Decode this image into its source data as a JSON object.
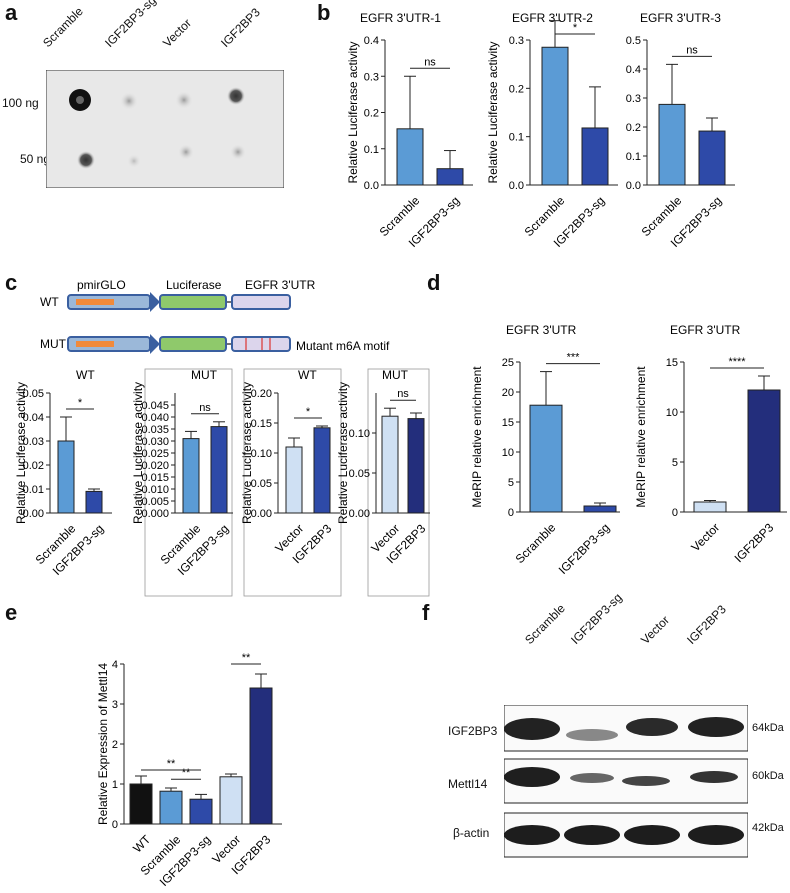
{
  "panels": {
    "a": "a",
    "b": "b",
    "c": "c",
    "d": "d",
    "e": "e",
    "f": "f"
  },
  "panel_a": {
    "lanes": [
      "Scramble",
      "IGF2BP3-sg",
      "Vector",
      "IGF2BP3"
    ],
    "rows": [
      "100 ng",
      "50 ng"
    ]
  },
  "panel_c": {
    "constructs": {
      "wt_label": "WT",
      "mut_label": "MUT",
      "pmirglo": "pmirGLO",
      "luciferase": "Luciferase",
      "egfr_utr": "EGFR  3'UTR",
      "mutant_motif": "Mutant m6A motif"
    }
  },
  "panel_f": {
    "lanes": [
      "Scramble",
      "IGF2BP3-sg",
      "Vector",
      "IGF2BP3"
    ],
    "rows": [
      {
        "name": "IGF2BP3",
        "size": "64kDa"
      },
      {
        "name": "Mettl14",
        "size": "60kDa"
      },
      {
        "name": "β-actin",
        "size": "42kDa"
      }
    ]
  },
  "colors": {
    "blue_light": "#5b9bd5",
    "blue_dark": "#2e4aa8",
    "pale_blue": "#cfe0f3",
    "navy": "#232e7c",
    "black": "#111111"
  },
  "chart_data": [
    {
      "id": "b1",
      "type": "bar",
      "title": "EGFR 3'UTR-1",
      "ylabel": "Relative Luciferase activity",
      "categories": [
        "Scramble",
        "IGF2BP3-sg"
      ],
      "values": [
        0.155,
        0.045
      ],
      "errors": [
        0.145,
        0.05
      ],
      "ylim": [
        0,
        0.4
      ],
      "ticks": [
        "0.0",
        "0.1",
        "0.2",
        "0.3",
        "0.4"
      ],
      "sig": "ns"
    },
    {
      "id": "b2",
      "type": "bar",
      "title": "EGFR 3'UTR-2",
      "ylabel": "Relative Luciferase activity",
      "categories": [
        "Scramble",
        "IGF2BP3-sg"
      ],
      "values": [
        0.285,
        0.118
      ],
      "errors": [
        0.055,
        0.085
      ],
      "ylim": [
        0,
        0.3
      ],
      "ticks": [
        "0.0",
        "0.1",
        "0.2",
        "0.3"
      ],
      "sig": "*"
    },
    {
      "id": "b3",
      "type": "bar",
      "title": "EGFR 3'UTR-3",
      "ylabel": "",
      "categories": [
        "Scramble",
        "IGF2BP3-sg"
      ],
      "values": [
        0.278,
        0.186
      ],
      "errors": [
        0.138,
        0.045
      ],
      "ylim": [
        0,
        0.5
      ],
      "ticks": [
        "0.0",
        "0.1",
        "0.2",
        "0.3",
        "0.4",
        "0.5"
      ],
      "sig": "ns"
    },
    {
      "id": "c1",
      "type": "bar",
      "title": "WT",
      "ylabel": "Relative Luciferase activity",
      "categories": [
        "Scramble",
        "IGF2BP3-sg"
      ],
      "values": [
        0.03,
        0.009
      ],
      "errors": [
        0.01,
        0.001
      ],
      "ylim": [
        0,
        0.05
      ],
      "ticks": [
        "0.00",
        "0.01",
        "0.02",
        "0.03",
        "0.04",
        "0.05"
      ],
      "sig": "*"
    },
    {
      "id": "c2",
      "type": "bar",
      "title": "MUT",
      "ylabel": "Relative Luciferase activity",
      "categories": [
        "Scramble",
        "IGF2BP3-sg"
      ],
      "values": [
        0.031,
        0.036
      ],
      "errors": [
        0.003,
        0.002
      ],
      "ylim": [
        0,
        0.05
      ],
      "ticks": [
        "0.000",
        "0.005",
        "0.010",
        "0.015",
        "0.020",
        "0.025",
        "0.030",
        "0.035",
        "0.040",
        "0.045"
      ],
      "sig": "ns"
    },
    {
      "id": "c3",
      "type": "bar",
      "title": "WT",
      "ylabel": "Relative Luciferase activity",
      "categories": [
        "Vector",
        "IGF2BP3"
      ],
      "values": [
        0.11,
        0.142
      ],
      "errors": [
        0.015,
        0.003
      ],
      "ylim": [
        0,
        0.2
      ],
      "ticks": [
        "0.00",
        "0.05",
        "0.10",
        "0.15",
        "0.20"
      ],
      "sig": "*"
    },
    {
      "id": "c4",
      "type": "bar",
      "title": "MUT",
      "ylabel": "Relative Luciferase activity",
      "categories": [
        "Vector",
        "IGF2BP3"
      ],
      "values": [
        0.121,
        0.118
      ],
      "errors": [
        0.01,
        0.007
      ],
      "ylim": [
        0,
        0.15
      ],
      "ticks": [
        "0.00",
        "0.05",
        "0.10"
      ],
      "sig": "ns"
    },
    {
      "id": "d1",
      "type": "bar",
      "title": "EGFR  3'UTR",
      "ylabel": "MeRIP relative enrichment",
      "categories": [
        "Scramble",
        "IGF2BP3-sg"
      ],
      "values": [
        17.8,
        1.0
      ],
      "errors": [
        5.6,
        0.5
      ],
      "ylim": [
        0,
        25
      ],
      "ticks": [
        "0",
        "5",
        "10",
        "15",
        "20",
        "25"
      ],
      "sig": "***"
    },
    {
      "id": "d2",
      "type": "bar",
      "title": "EGFR  3'UTR",
      "ylabel": "MeRIP relative enrichment",
      "categories": [
        "Vector",
        "IGF2BP3"
      ],
      "values": [
        1.0,
        12.2
      ],
      "errors": [
        0.15,
        1.4
      ],
      "ylim": [
        0,
        15
      ],
      "ticks": [
        "0",
        "5",
        "10",
        "15"
      ],
      "sig": "****"
    },
    {
      "id": "e",
      "type": "bar",
      "title": "",
      "ylabel": "Relative Expression of Mettl14",
      "categories": [
        "WT",
        "Scramble",
        "IGF2BP3-sg",
        "Vector",
        "IGF2BP3"
      ],
      "values": [
        1.0,
        0.82,
        0.62,
        1.18,
        3.4
      ],
      "errors": [
        0.2,
        0.08,
        0.12,
        0.07,
        0.35
      ],
      "ylim": [
        0,
        4
      ],
      "ticks": [
        "0",
        "1",
        "2",
        "3",
        "4"
      ],
      "sig": [
        {
          "from": 0,
          "to": 2,
          "label": "**"
        },
        {
          "from": 1,
          "to": 2,
          "label": "**"
        },
        {
          "from": 3,
          "to": 4,
          "label": "**"
        }
      ]
    }
  ]
}
